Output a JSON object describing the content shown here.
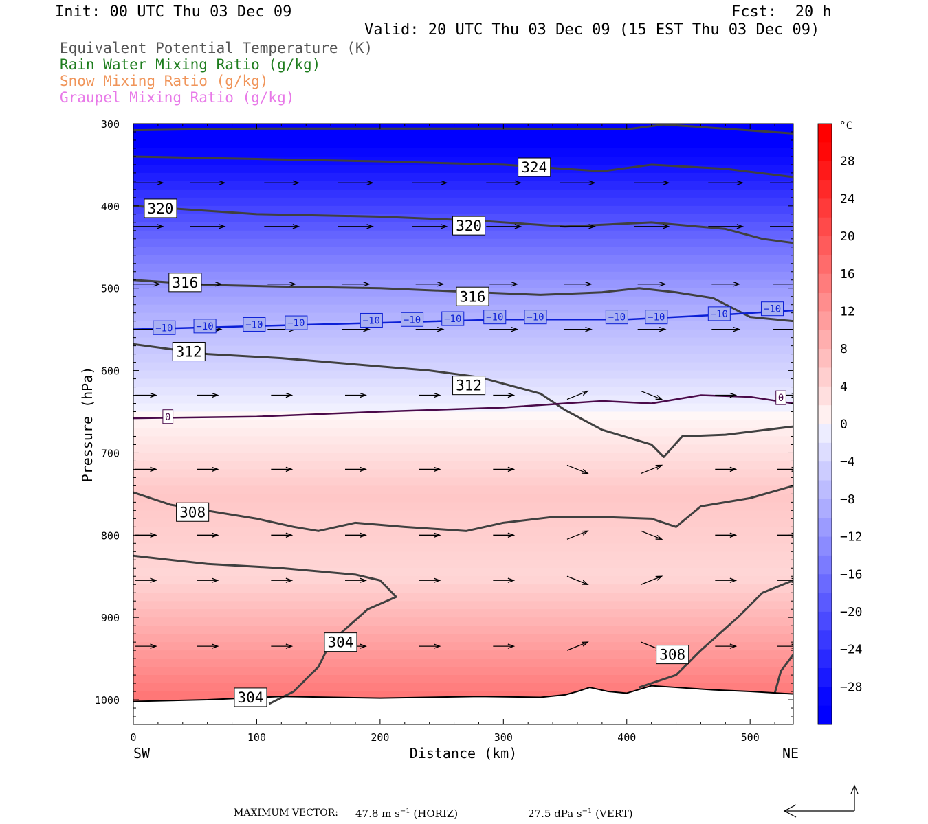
{
  "header": {
    "init": "Init: 00 UTC Thu 03 Dec 09",
    "fcst": "Fcst:  20 h",
    "valid": "Valid: 20 UTC Thu 03 Dec 09 (15 EST Thu 03 Dec 09)"
  },
  "legend": [
    {
      "text": "Equivalent Potential Temperature (K)",
      "color": "#555555"
    },
    {
      "text": "Rain Water Mixing Ratio (g/kg)",
      "color": "#1e7d1e"
    },
    {
      "text": "Snow Mixing Ratio (g/kg)",
      "color": "#f0955a"
    },
    {
      "text": "Graupel Mixing Ratio (g/kg)",
      "color": "#e879e8"
    }
  ],
  "chart_data": {
    "type": "heatmap",
    "ylabel": "Pressure (hPa)",
    "xlabel": "Distance (km)",
    "x_range": [
      0,
      535
    ],
    "y_range": [
      300,
      1030
    ],
    "x_ticks": [
      0,
      100,
      200,
      300,
      400,
      500
    ],
    "y_ticks": [
      300,
      400,
      500,
      600,
      700,
      800,
      900,
      1000
    ],
    "x_end_labels": {
      "left": "SW",
      "right": "NE"
    },
    "colorbar": {
      "unit": "°C",
      "tick_values": [
        28,
        24,
        20,
        16,
        12,
        8,
        4,
        0,
        -4,
        -8,
        -12,
        -16,
        -20,
        -24,
        -28
      ],
      "tick_labels": [
        "28",
        "24",
        "20",
        "16",
        "12",
        "8",
        "4",
        "0",
        "−4",
        "−8",
        "−12",
        "−16",
        "−20",
        "−24",
        "−28"
      ],
      "range": [
        -32,
        32
      ]
    },
    "temperature_profile": [
      {
        "p": 300,
        "t": -32
      },
      {
        "p": 350,
        "t": -28
      },
      {
        "p": 400,
        "t": -22
      },
      {
        "p": 450,
        "t": -16
      },
      {
        "p": 500,
        "t": -11
      },
      {
        "p": 550,
        "t": -7
      },
      {
        "p": 600,
        "t": -4
      },
      {
        "p": 640,
        "t": -1
      },
      {
        "p": 660,
        "t": 0.5
      },
      {
        "p": 700,
        "t": 3
      },
      {
        "p": 750,
        "t": 6
      },
      {
        "p": 800,
        "t": 5
      },
      {
        "p": 850,
        "t": 4
      },
      {
        "p": 900,
        "t": 8
      },
      {
        "p": 950,
        "t": 12
      },
      {
        "p": 1000,
        "t": 16
      }
    ],
    "contours_theta_e": [
      {
        "value": 324,
        "points": [
          [
            0,
            308
          ],
          [
            100,
            306
          ],
          [
            200,
            306
          ],
          [
            300,
            306
          ],
          [
            400,
            307
          ],
          [
            430,
            301
          ],
          [
            535,
            312
          ]
        ]
      },
      {
        "value": 324,
        "points": [
          [
            0,
            340
          ],
          [
            100,
            343
          ],
          [
            200,
            346
          ],
          [
            300,
            350
          ],
          [
            350,
            355
          ],
          [
            380,
            358
          ],
          [
            420,
            350
          ],
          [
            480,
            355
          ],
          [
            535,
            365
          ]
        ]
      },
      {
        "value": 320,
        "points": [
          [
            0,
            400
          ],
          [
            100,
            410
          ],
          [
            200,
            413
          ],
          [
            280,
            418
          ],
          [
            350,
            425
          ],
          [
            420,
            420
          ],
          [
            480,
            428
          ],
          [
            510,
            440
          ],
          [
            535,
            445
          ]
        ]
      },
      {
        "value": 316,
        "points": [
          [
            0,
            490
          ],
          [
            60,
            496
          ],
          [
            120,
            498
          ],
          [
            200,
            500
          ],
          [
            280,
            505
          ],
          [
            330,
            508
          ],
          [
            380,
            505
          ],
          [
            410,
            500
          ],
          [
            440,
            505
          ],
          [
            470,
            512
          ],
          [
            500,
            535
          ],
          [
            535,
            540
          ]
        ]
      },
      {
        "value": 312,
        "points": [
          [
            0,
            568
          ],
          [
            60,
            580
          ],
          [
            120,
            585
          ],
          [
            200,
            595
          ],
          [
            240,
            600
          ],
          [
            280,
            608
          ],
          [
            330,
            628
          ],
          [
            350,
            648
          ],
          [
            380,
            672
          ],
          [
            420,
            690
          ],
          [
            430,
            705
          ],
          [
            445,
            680
          ],
          [
            480,
            678
          ],
          [
            535,
            668
          ]
        ]
      },
      {
        "value": 308,
        "points": [
          [
            0,
            748
          ],
          [
            30,
            763
          ],
          [
            100,
            780
          ],
          [
            130,
            790
          ],
          [
            150,
            795
          ],
          [
            180,
            785
          ],
          [
            220,
            790
          ],
          [
            270,
            795
          ],
          [
            300,
            785
          ],
          [
            340,
            778
          ],
          [
            380,
            778
          ],
          [
            420,
            780
          ],
          [
            440,
            790
          ],
          [
            460,
            765
          ],
          [
            500,
            755
          ],
          [
            535,
            740
          ]
        ]
      },
      {
        "value": 304,
        "points": [
          [
            0,
            825
          ],
          [
            60,
            835
          ],
          [
            120,
            840
          ],
          [
            180,
            848
          ],
          [
            200,
            855
          ],
          [
            213,
            875
          ],
          [
            190,
            890
          ],
          [
            160,
            930
          ],
          [
            150,
            960
          ],
          [
            130,
            990
          ],
          [
            110,
            1005
          ]
        ]
      },
      {
        "value": 308,
        "points": [
          [
            410,
            985
          ],
          [
            440,
            970
          ],
          [
            460,
            940
          ],
          [
            490,
            900
          ],
          [
            510,
            870
          ],
          [
            535,
            855
          ]
        ]
      },
      {
        "value": 304,
        "points": [
          [
            520,
            992
          ],
          [
            525,
            965
          ],
          [
            535,
            945
          ]
        ]
      }
    ],
    "contour_labels": [
      {
        "text": "324",
        "x": 325,
        "p": 353
      },
      {
        "text": "320",
        "x": 22,
        "p": 403
      },
      {
        "text": "320",
        "x": 272,
        "p": 424
      },
      {
        "text": "316",
        "x": 42,
        "p": 493
      },
      {
        "text": "316",
        "x": 275,
        "p": 510
      },
      {
        "text": "312",
        "x": 45,
        "p": 577
      },
      {
        "text": "312",
        "x": 272,
        "p": 618
      },
      {
        "text": "308",
        "x": 48,
        "p": 772
      },
      {
        "text": "308",
        "x": 437,
        "p": 945
      },
      {
        "text": "304",
        "x": 168,
        "p": 930
      },
      {
        "text": "304",
        "x": 95,
        "p": 997
      }
    ],
    "isotherm_0": [
      [
        0,
        658
      ],
      [
        100,
        656
      ],
      [
        200,
        650
      ],
      [
        300,
        645
      ],
      [
        350,
        640
      ],
      [
        380,
        637
      ],
      [
        420,
        640
      ],
      [
        460,
        630
      ],
      [
        500,
        632
      ],
      [
        535,
        640
      ]
    ],
    "isotherm_0_labels": [
      {
        "text": "0",
        "x": 28,
        "p": 656
      },
      {
        "text": "0",
        "x": 525,
        "p": 633
      }
    ],
    "isotherm_m10": [
      [
        0,
        550
      ],
      [
        100,
        546
      ],
      [
        200,
        542
      ],
      [
        300,
        538
      ],
      [
        400,
        538
      ],
      [
        480,
        532
      ],
      [
        535,
        527
      ]
    ],
    "isotherm_m10_labels": [
      {
        "text": "−10",
        "x": 25,
        "p": 548
      },
      {
        "text": "−10",
        "x": 58,
        "p": 546
      },
      {
        "text": "−10",
        "x": 98,
        "p": 544
      },
      {
        "text": "−10",
        "x": 132,
        "p": 542
      },
      {
        "text": "−10",
        "x": 193,
        "p": 539
      },
      {
        "text": "−10",
        "x": 226,
        "p": 538
      },
      {
        "text": "−10",
        "x": 259,
        "p": 537
      },
      {
        "text": "−10",
        "x": 293,
        "p": 535
      },
      {
        "text": "−10",
        "x": 326,
        "p": 535
      },
      {
        "text": "−10",
        "x": 392,
        "p": 535
      },
      {
        "text": "−10",
        "x": 424,
        "p": 535
      },
      {
        "text": "−10",
        "x": 475,
        "p": 531
      },
      {
        "text": "−10",
        "x": 518,
        "p": 525
      }
    ],
    "terrain_surface": [
      [
        0,
        1002
      ],
      [
        60,
        1000
      ],
      [
        120,
        996
      ],
      [
        200,
        998
      ],
      [
        280,
        996
      ],
      [
        330,
        997
      ],
      [
        350,
        994
      ],
      [
        360,
        990
      ],
      [
        370,
        985
      ],
      [
        385,
        990
      ],
      [
        400,
        992
      ],
      [
        420,
        983
      ],
      [
        440,
        985
      ],
      [
        470,
        988
      ],
      [
        500,
        990
      ],
      [
        535,
        993
      ]
    ],
    "max_vector": {
      "label": "MAXIMUM VECTOR:",
      "horiz": "47.8 m s",
      "horiz_unit": "(HORIZ)",
      "vert": "27.5 dPa s",
      "vert_unit": "(VERT)",
      "exp": "−1"
    }
  }
}
